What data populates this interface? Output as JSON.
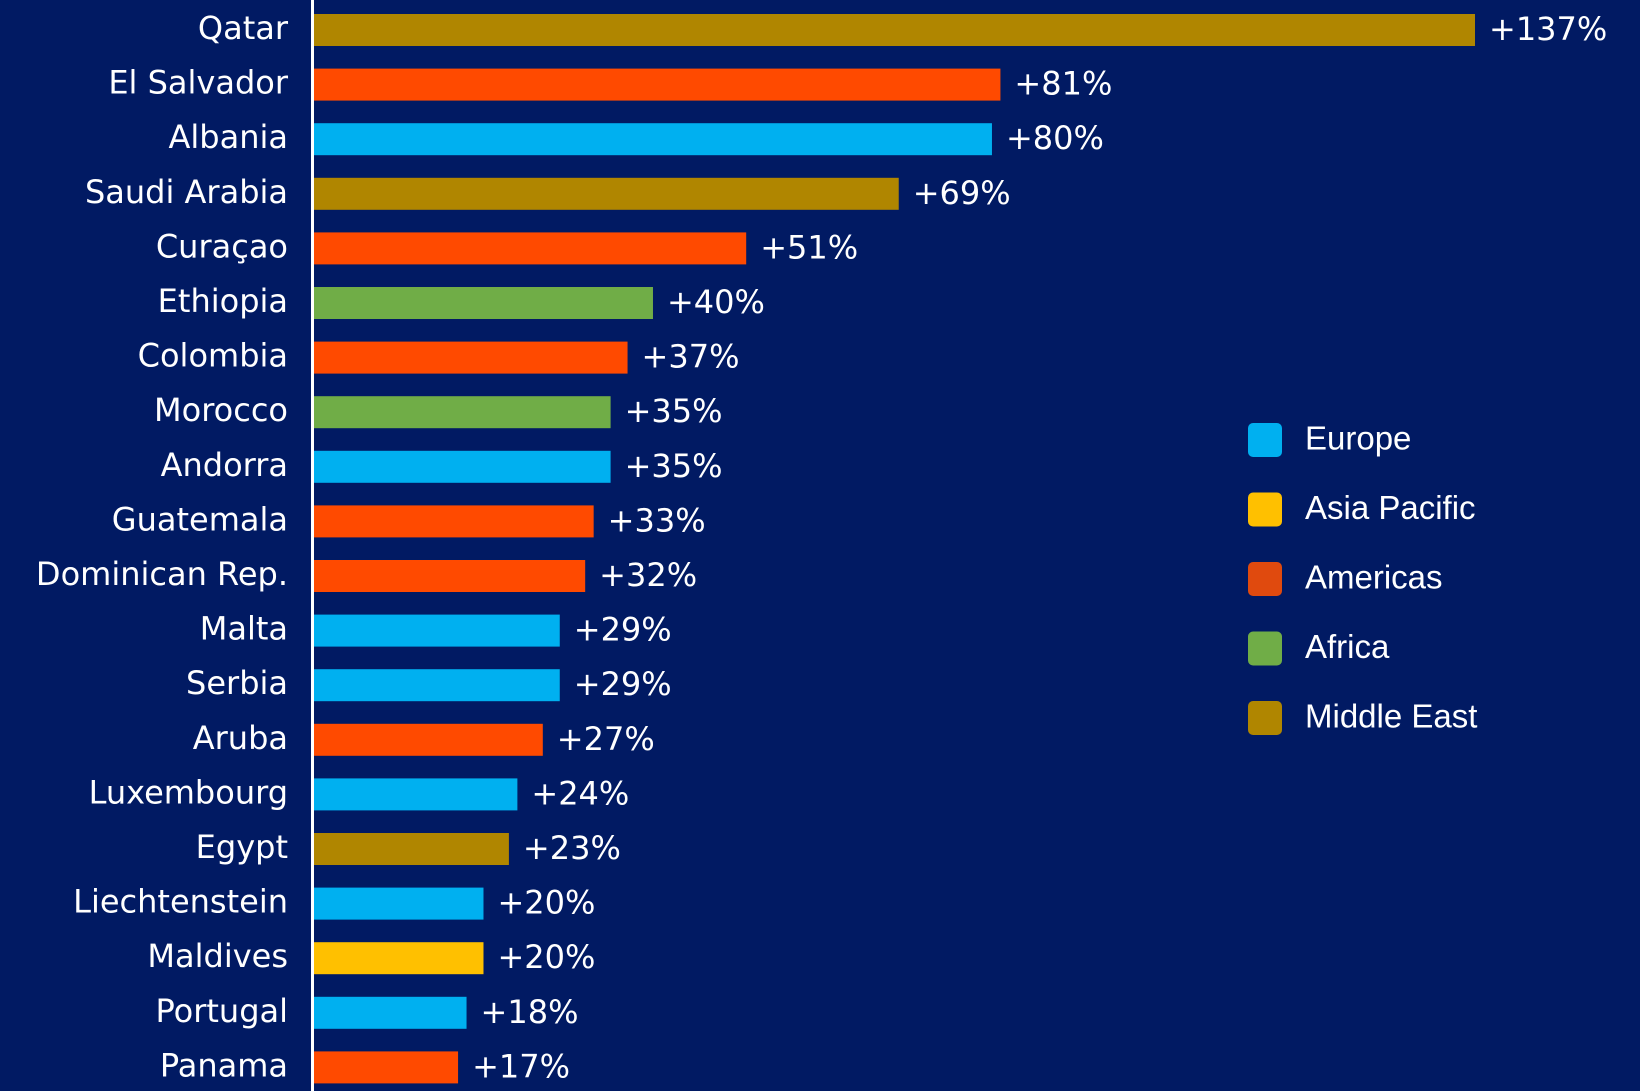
{
  "chart_data": {
    "type": "barh",
    "categories": [
      "Qatar",
      "El Salvador",
      "Albania",
      "Saudi Arabia",
      "Curaçao",
      "Ethiopia",
      "Colombia",
      "Morocco",
      "Andorra",
      "Guatemala",
      "Dominican Rep.",
      "Malta",
      "Serbia",
      "Aruba",
      "Luxembourg",
      "Egypt",
      "Liechtenstein",
      "Maldives",
      "Portugal",
      "Panama"
    ],
    "values": [
      137,
      81,
      80,
      69,
      51,
      40,
      37,
      35,
      35,
      33,
      32,
      29,
      29,
      27,
      24,
      23,
      20,
      20,
      18,
      17
    ],
    "value_labels": [
      "+137%",
      "+81%",
      "+80%",
      "+69%",
      "+51%",
      "+40%",
      "+37%",
      "+35%",
      "+35%",
      "+33%",
      "+32%",
      "+29%",
      "+29%",
      "+27%",
      "+24%",
      "+23%",
      "+20%",
      "+20%",
      "+18%",
      "+17%"
    ],
    "colors": [
      "#b08600",
      "#ff4a00",
      "#00b0f0",
      "#b08600",
      "#ff4a00",
      "#70ad47",
      "#ff4a00",
      "#70ad47",
      "#00b0f0",
      "#ff4a00",
      "#ff4a00",
      "#00b0f0",
      "#00b0f0",
      "#ff4a00",
      "#00b0f0",
      "#b08600",
      "#00b0f0",
      "#ffc000",
      "#00b0f0",
      "#ff4a00"
    ],
    "legend": [
      {
        "name": "Europe",
        "color": "#00b0f0"
      },
      {
        "name": "Asia Pacific",
        "color": "#ffc000"
      },
      {
        "name": "Americas",
        "color": "#e04a0e"
      },
      {
        "name": "Africa",
        "color": "#70ad47"
      },
      {
        "name": "Middle East",
        "color": "#b08600"
      }
    ]
  }
}
